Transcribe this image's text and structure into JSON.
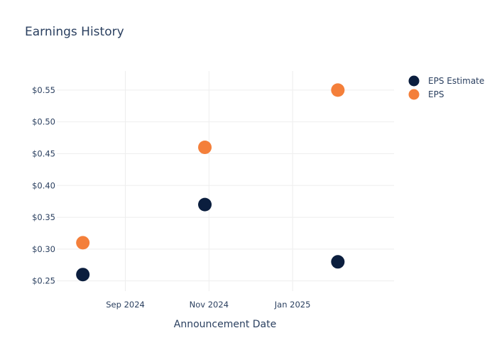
{
  "chart_data": {
    "type": "scatter",
    "title": "Earnings History",
    "xlabel": "Announcement Date",
    "ylabel": "",
    "x_ticks": [
      {
        "date": "2024-09-01",
        "label": "Sep 2024"
      },
      {
        "date": "2024-11-01",
        "label": "Nov 2024"
      },
      {
        "date": "2025-01-01",
        "label": "Jan 2025"
      }
    ],
    "y_ticks": [
      {
        "value": 0.25,
        "label": "$0.25"
      },
      {
        "value": 0.3,
        "label": "$0.30"
      },
      {
        "value": 0.35,
        "label": "$0.35"
      },
      {
        "value": 0.4,
        "label": "$0.40"
      },
      {
        "value": 0.45,
        "label": "$0.45"
      },
      {
        "value": 0.5,
        "label": "$0.50"
      },
      {
        "value": 0.55,
        "label": "$0.55"
      }
    ],
    "xlim": [
      "2024-07-13",
      "2025-03-16"
    ],
    "ylim": [
      0.234,
      0.58
    ],
    "grid": true,
    "legend_position": "top-right",
    "series": [
      {
        "name": "EPS Estimate",
        "color": "#0b1e3e",
        "points": [
          {
            "x": "2024-08-01",
            "y": 0.26
          },
          {
            "x": "2024-10-29",
            "y": 0.37
          },
          {
            "x": "2025-02-03",
            "y": 0.28
          }
        ]
      },
      {
        "name": "EPS",
        "color": "#f47f3a",
        "points": [
          {
            "x": "2024-08-01",
            "y": 0.31
          },
          {
            "x": "2024-10-29",
            "y": 0.46
          },
          {
            "x": "2025-02-03",
            "y": 0.55
          }
        ]
      }
    ]
  }
}
